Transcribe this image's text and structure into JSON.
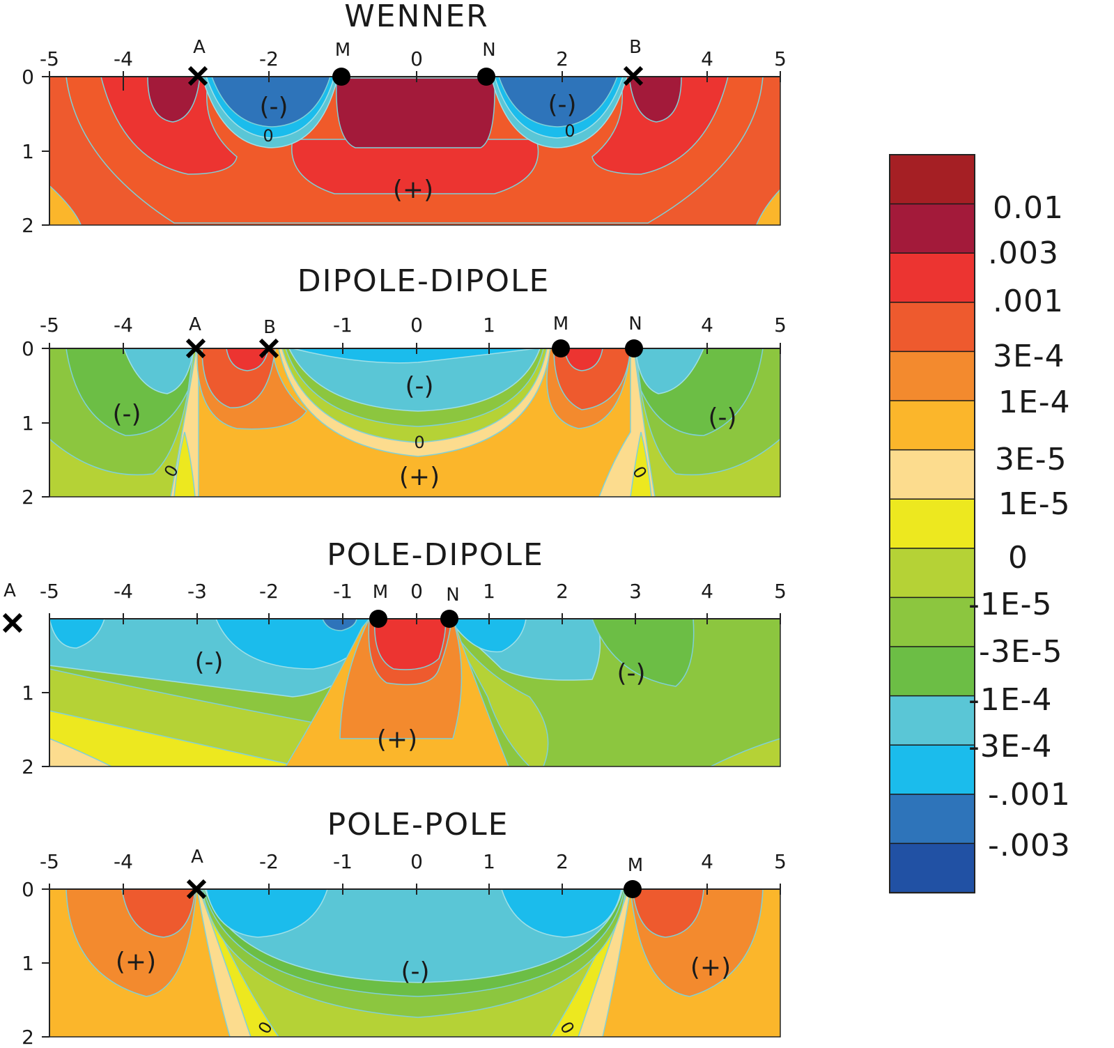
{
  "legend": {
    "labels": [
      "0.01",
      ".003",
      ".001",
      "3E-4",
      "1E-4",
      "3E-5",
      "1E-5",
      "0",
      "-1E-5",
      "-3E-5",
      "-1E-4",
      "-3E-4",
      "-.001",
      "-.003"
    ],
    "colors": [
      "#A51F24",
      "#A31A3A",
      "#EC3431",
      "#EE5A2E",
      "#F38A2E",
      "#FBB62B",
      "#FCDC8E",
      "#EDE81F",
      "#B5D236",
      "#8CC63F",
      "#6CBE45",
      "#5AC6D6",
      "#1BBCEC",
      "#2E74BA",
      "#2151A4"
    ]
  },
  "x_ticks": [
    "-5",
    "-4",
    "-3",
    "-2",
    "-1",
    "0",
    "1",
    "2",
    "3",
    "4",
    "5"
  ],
  "y_ticks": [
    "0",
    "1",
    "2"
  ],
  "panels": [
    {
      "title": "WENNER",
      "x_ticks_shown": [
        "-5",
        "-4",
        "-2",
        "0",
        "2",
        "4",
        "5"
      ],
      "electrodes": [
        {
          "label": "A",
          "kind": "current",
          "x": -3
        },
        {
          "label": "M",
          "kind": "potential",
          "x": -1
        },
        {
          "label": "N",
          "kind": "potential",
          "x": 1
        },
        {
          "label": "B",
          "kind": "current",
          "x": 3
        }
      ],
      "region_labels": [
        "(-)",
        "(-)",
        "(+)"
      ],
      "zero_labels": [
        "0",
        "0"
      ]
    },
    {
      "title": "DIPOLE-DIPOLE",
      "x_ticks_shown": [
        "-5",
        "-4",
        "-1",
        "0",
        "1",
        "4",
        "5"
      ],
      "electrodes": [
        {
          "label": "A",
          "kind": "current",
          "x": -3
        },
        {
          "label": "B",
          "kind": "current",
          "x": -2
        },
        {
          "label": "M",
          "kind": "potential",
          "x": 2
        },
        {
          "label": "N",
          "kind": "potential",
          "x": 3
        }
      ],
      "region_labels": [
        "(-)",
        "(-)",
        "(-)",
        "(+)"
      ],
      "zero_labels": [
        "0",
        "0",
        "0"
      ]
    },
    {
      "title": "POLE-DIPOLE",
      "x_ticks_shown": [
        "-5",
        "-4",
        "-3",
        "-2",
        "-1",
        "0",
        "1",
        "2",
        "3",
        "4",
        "5"
      ],
      "electrodes": [
        {
          "label": "A",
          "kind": "current",
          "x": "off-left"
        },
        {
          "label": "M",
          "kind": "potential",
          "x": -0.5
        },
        {
          "label": "N",
          "kind": "potential",
          "x": 0.5
        }
      ],
      "region_labels": [
        "(-)",
        "(-)",
        "(+)"
      ],
      "zero_labels": []
    },
    {
      "title": "POLE-POLE",
      "x_ticks_shown": [
        "-5",
        "-4",
        "-2",
        "-1",
        "0",
        "1",
        "2",
        "4",
        "5"
      ],
      "electrodes": [
        {
          "label": "A",
          "kind": "current",
          "x": -3
        },
        {
          "label": "M",
          "kind": "potential",
          "x": 3
        }
      ],
      "region_labels": [
        "(+)",
        "(-)",
        "(+)"
      ],
      "zero_labels": [
        "0",
        "0"
      ]
    }
  ]
}
